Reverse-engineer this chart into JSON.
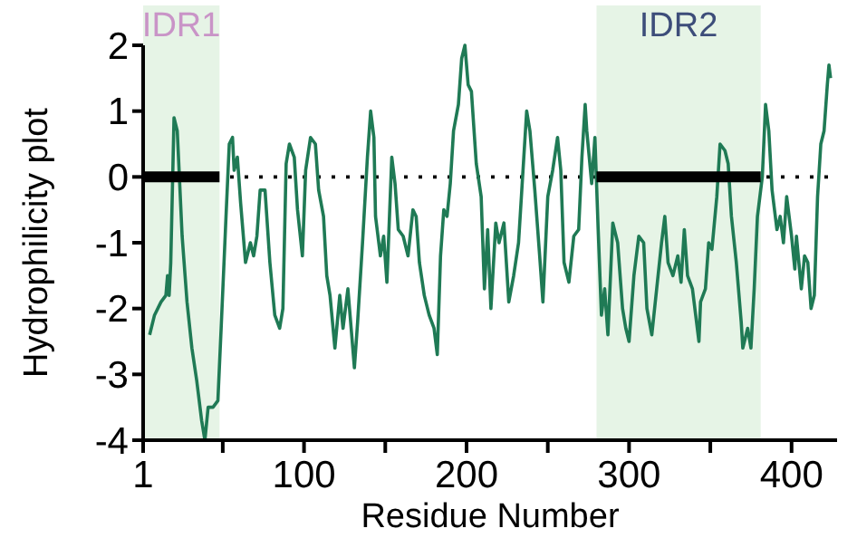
{
  "chart_data": {
    "type": "line",
    "xlabel": "Residue Number",
    "ylabel": "Hydrophilicity plot",
    "xlim": [
      1,
      428
    ],
    "ylim": [
      -4,
      2
    ],
    "xticks": [
      1,
      {
        "value": 50,
        "label": null
      },
      100,
      {
        "value": 150,
        "label": null
      },
      200,
      {
        "value": 250,
        "label": null
      },
      300,
      {
        "value": 350,
        "label": null
      },
      400
    ],
    "yticks": [
      -4,
      -3,
      -2,
      -1,
      0,
      1,
      2
    ],
    "grid": false,
    "ref_lines": [
      {
        "axis": "y",
        "value": 0,
        "color": "#000000",
        "line_style": "dotted"
      }
    ],
    "bands": [
      {
        "axis": "x",
        "from": 1,
        "to": 48,
        "label": "IDR1",
        "color": "#e6f4e6"
      },
      {
        "axis": "x",
        "from": 280,
        "to": 381,
        "label": "IDR2",
        "color": "#e6f4e6"
      }
    ],
    "series": [
      {
        "color": "#1f7a55",
        "line_style": "solid",
        "x": [
          5,
          8,
          12,
          15,
          16,
          17,
          18,
          20,
          22,
          25,
          28,
          31,
          34,
          37,
          39,
          41,
          44,
          47,
          49,
          52,
          54,
          56,
          57,
          59,
          61,
          64,
          67,
          69,
          71,
          73,
          76,
          79,
          82,
          85,
          87,
          89,
          91,
          94,
          96,
          99,
          101,
          104,
          107,
          109,
          112,
          114,
          116,
          119,
          122,
          124,
          127,
          129,
          131,
          133,
          136,
          139,
          141,
          143,
          144,
          147,
          149,
          151,
          154,
          156,
          158,
          161,
          164,
          167,
          169,
          171,
          174,
          177,
          180,
          182,
          184,
          186,
          188,
          190,
          192,
          195,
          197,
          199,
          201,
          203,
          206,
          209,
          211,
          213,
          215,
          218,
          220,
          223,
          226,
          229,
          232,
          234,
          237,
          239,
          242,
          245,
          247,
          250,
          253,
          256,
          258,
          260,
          263,
          266,
          269,
          271,
          273,
          274,
          277,
          279,
          281,
          283,
          285,
          287,
          290,
          293,
          296,
          298,
          300,
          303,
          306,
          309,
          311,
          314,
          317,
          320,
          322,
          324,
          327,
          330,
          332,
          334,
          336,
          339,
          341,
          343,
          344,
          347,
          349,
          351,
          354,
          356,
          359,
          361,
          363,
          366,
          369,
          370,
          373,
          375,
          377,
          379,
          382,
          384,
          386,
          388,
          391,
          393,
          395,
          397,
          400,
          402,
          403,
          406,
          408,
          410,
          412,
          414,
          416,
          418,
          420,
          422,
          423,
          424
        ],
        "values": [
          -2.4,
          -2.1,
          -1.9,
          -1.8,
          -1.5,
          -1.8,
          -1.3,
          0.9,
          0.7,
          -0.9,
          -1.9,
          -2.6,
          -3.1,
          -3.7,
          -4,
          -3.5,
          -3.5,
          -3.4,
          -2.3,
          -0.6,
          0.5,
          0.6,
          0.1,
          0.3,
          -0.4,
          -1.3,
          -1,
          -1.2,
          -0.9,
          -0.2,
          -0.2,
          -1.3,
          -2.1,
          -2.3,
          -2,
          0.2,
          0.5,
          0.3,
          -0.5,
          -1.2,
          0.1,
          0.6,
          0.5,
          -0.2,
          -0.6,
          -1.5,
          -1.8,
          -2.6,
          -1.8,
          -2.3,
          -1.7,
          -2.3,
          -2.9,
          -2.2,
          -1,
          0.3,
          1,
          0.6,
          -0.6,
          -1.2,
          -0.9,
          -1.6,
          0.3,
          -0.1,
          -0.8,
          -0.9,
          -1.2,
          -0.5,
          -0.6,
          -1.3,
          -1.8,
          -2.1,
          -2.3,
          -2.7,
          -1.2,
          -0.5,
          -0.6,
          -0.1,
          0.7,
          1.1,
          1.8,
          2,
          1.4,
          1.3,
          0.2,
          -0.3,
          -1.7,
          -0.8,
          -2,
          -0.7,
          -1,
          -0.7,
          -1.9,
          -1.5,
          -1,
          -0.2,
          1,
          0.7,
          -0.2,
          -1.2,
          -1.9,
          -0.3,
          0.1,
          0.6,
          0.1,
          -1.3,
          -1.6,
          -0.9,
          -0.8,
          0.3,
          1.1,
          0.7,
          -0.1,
          0.6,
          -0.8,
          -2.1,
          -1.7,
          -2.4,
          -0.7,
          -1,
          -2,
          -2.3,
          -2.5,
          -1.5,
          -0.9,
          -1,
          -2,
          -2.4,
          -1.7,
          -1,
          -0.6,
          -1.3,
          -1.5,
          -1.2,
          -1.6,
          -0.8,
          -1.5,
          -1.7,
          -2.1,
          -2.5,
          -1.9,
          -1.7,
          -1,
          -1.1,
          -0.3,
          0.5,
          0.4,
          0.2,
          -0.6,
          -1.3,
          -2.2,
          -2.6,
          -2.3,
          -2.6,
          -1.7,
          -0.6,
          0,
          1.1,
          0.7,
          -0.2,
          -0.8,
          -0.6,
          -1,
          -0.3,
          -0.9,
          -1.4,
          -0.9,
          -1.7,
          -1.2,
          -1.3,
          -2,
          -1.8,
          -0.3,
          0.5,
          0.7,
          1.4,
          1.7,
          1.5
        ]
      },
      {
        "color": "#000000",
        "line_style": "solid",
        "x": [
          1,
          48
        ],
        "values": [
          0,
          0
        ]
      },
      {
        "color": "#000000",
        "line_style": "solid",
        "x": [
          280,
          381
        ],
        "values": [
          0,
          0
        ]
      }
    ]
  }
}
